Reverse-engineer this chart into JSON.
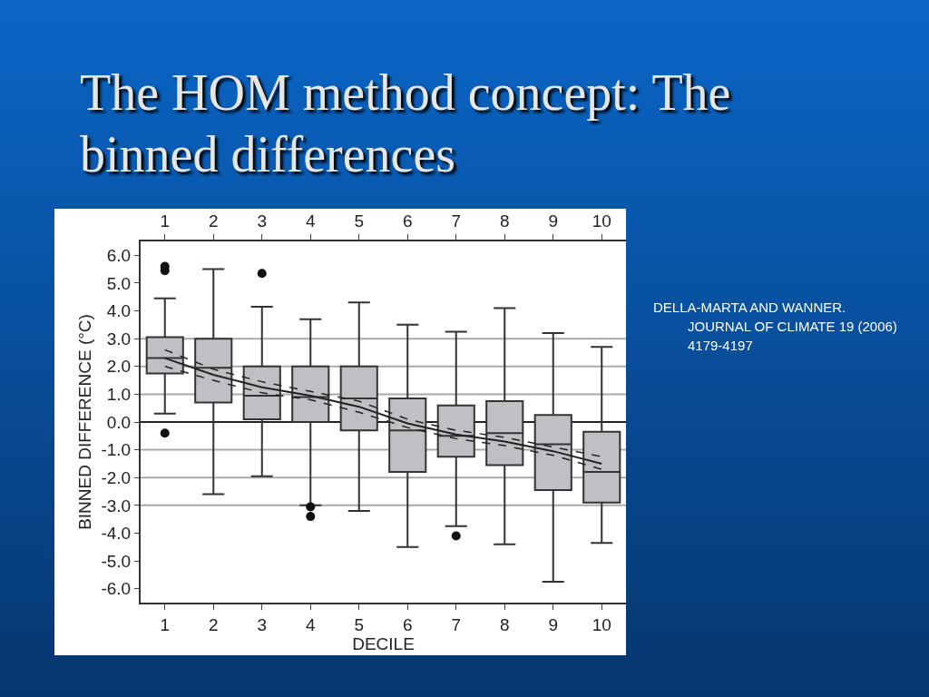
{
  "chart_data": {
    "type": "box",
    "title": "The HOM method concept: The binned differences",
    "xlabel": "DECILE",
    "ylabel": "BINNED DIFFERENCE (°C)",
    "categories": [
      "1",
      "2",
      "3",
      "4",
      "5",
      "6",
      "7",
      "8",
      "9",
      "10"
    ],
    "color": "#c0c0c4",
    "boxes": [
      {
        "low": 0.3,
        "q1": 1.75,
        "median": 2.3,
        "q3": 3.05,
        "high": 4.45,
        "outliers": [
          5.6,
          5.45,
          -0.4
        ]
      },
      {
        "low": -2.6,
        "q1": 0.7,
        "median": 1.95,
        "q3": 3.0,
        "high": 5.5
      },
      {
        "low": -1.95,
        "q1": 0.1,
        "median": 0.95,
        "q3": 2.0,
        "high": 4.15,
        "outliers": [
          5.35
        ]
      },
      {
        "low": -3.0,
        "q1": 0.0,
        "median": 0.9,
        "q3": 2.0,
        "high": 3.7,
        "outliers": [
          -3.05,
          -3.4
        ]
      },
      {
        "low": -3.2,
        "q1": -0.3,
        "median": 0.85,
        "q3": 2.0,
        "high": 4.3
      },
      {
        "low": -4.5,
        "q1": -1.8,
        "median": -0.3,
        "q3": 0.85,
        "high": 3.5
      },
      {
        "low": -3.75,
        "q1": -1.25,
        "median": -0.5,
        "q3": 0.6,
        "high": 3.25,
        "outliers": [
          -4.1
        ]
      },
      {
        "low": -4.4,
        "q1": -1.55,
        "median": -0.4,
        "q3": 0.75,
        "high": 4.1
      },
      {
        "low": -5.75,
        "q1": -2.45,
        "median": -0.8,
        "q3": 0.25,
        "high": 3.2
      },
      {
        "low": -4.35,
        "q1": -2.9,
        "median": -1.8,
        "q3": -0.35,
        "high": 2.7
      }
    ],
    "series": [
      {
        "type": "line",
        "color": "#222222",
        "line_style": "solid",
        "values": [
          2.3,
          1.7,
          1.25,
          0.95,
          0.55,
          -0.05,
          -0.45,
          -0.7,
          -1.05,
          -1.5
        ]
      },
      {
        "type": "line",
        "color": "#222222",
        "line_style": "dashed",
        "values": [
          2.6,
          1.9,
          1.45,
          1.1,
          0.75,
          0.1,
          -0.3,
          -0.55,
          -0.9,
          -1.25
        ]
      },
      {
        "type": "line",
        "color": "#222222",
        "line_style": "dashed",
        "values": [
          2.0,
          1.5,
          1.05,
          0.8,
          0.35,
          -0.2,
          -0.6,
          -0.85,
          -1.2,
          -1.7
        ]
      }
    ],
    "ylim": [
      -6.5,
      6.5
    ],
    "yticks": [
      {
        "value": 6,
        "label": "6.0"
      },
      {
        "value": 5,
        "label": "5.0"
      },
      {
        "value": 4,
        "label": "4.0"
      },
      {
        "value": 3,
        "label": "3.0"
      },
      {
        "value": 2,
        "label": "2.0"
      },
      {
        "value": 1,
        "label": "1.0"
      },
      {
        "value": 0,
        "label": "0.0"
      },
      {
        "value": -1,
        "label": "-1.0"
      },
      {
        "value": -2,
        "label": "-2.0"
      },
      {
        "value": -3,
        "label": "-3.0"
      },
      {
        "value": -4,
        "label": "-4.0"
      },
      {
        "value": -5,
        "label": "-5.0"
      },
      {
        "value": -6,
        "label": "-6.0"
      }
    ],
    "ref_lines": [
      {
        "axis": "y",
        "value": 3,
        "color": "#aaaaaa"
      },
      {
        "axis": "y",
        "value": 2,
        "color": "#aaaaaa"
      },
      {
        "axis": "y",
        "value": 1,
        "color": "#aaaaaa"
      },
      {
        "axis": "y",
        "value": 0,
        "color": "#222222"
      },
      {
        "axis": "y",
        "value": -1,
        "color": "#aaaaaa"
      },
      {
        "axis": "y",
        "value": -2,
        "color": "#aaaaaa"
      },
      {
        "axis": "y",
        "value": -3,
        "color": "#aaaaaa"
      }
    ],
    "annotations": [
      "DELLA-MARTA AND WANNER. JOURNAL OF CLIMATE 19 (2006) 4179-4197"
    ]
  }
}
